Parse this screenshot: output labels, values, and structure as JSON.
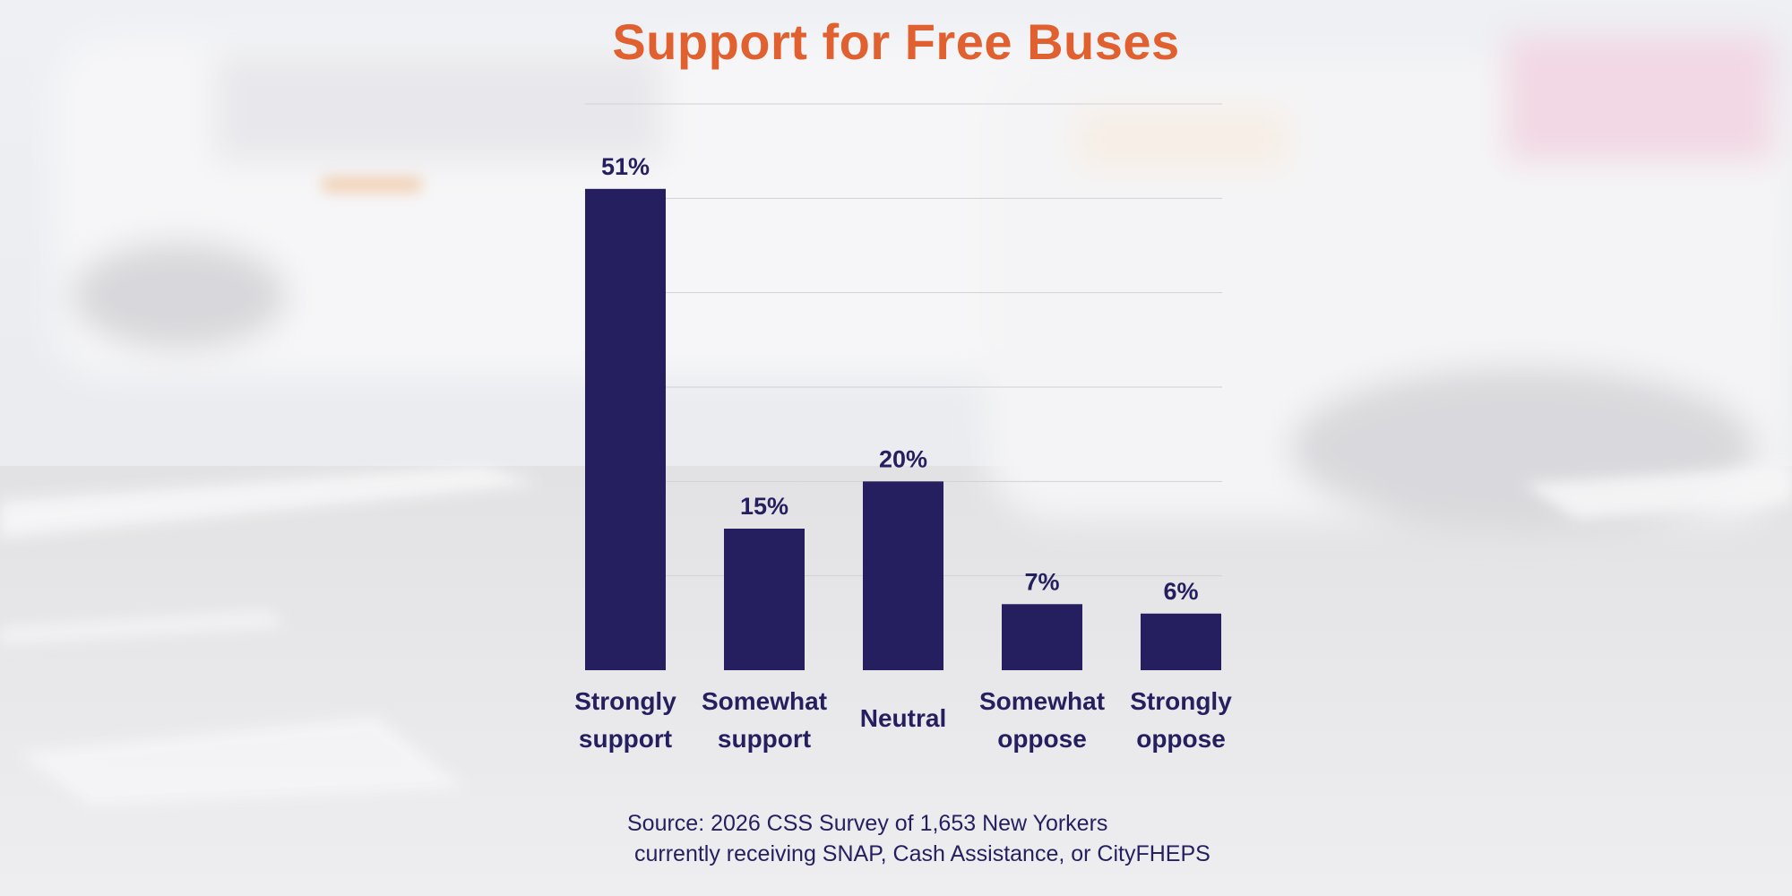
{
  "colors": {
    "title": "#e0602f",
    "bar": "#251f5f",
    "text": "#251f5f",
    "grid": "#d2d2d6"
  },
  "chart_data": {
    "type": "bar",
    "title": "Support for Free Buses",
    "categories": [
      [
        "Strongly",
        "support"
      ],
      [
        "Somewhat",
        "support"
      ],
      [
        "Neutral"
      ],
      [
        "Somewhat",
        "oppose"
      ],
      [
        "Strongly",
        "oppose"
      ]
    ],
    "values": [
      51,
      15,
      20,
      7,
      6
    ],
    "value_labels": [
      "51%",
      "15%",
      "20%",
      "7%",
      "6%"
    ],
    "ylim": [
      0,
      60
    ],
    "grid": true,
    "xlabel": "",
    "ylabel": ""
  },
  "source": {
    "line1": "Source: 2026 CSS Survey of 1,653 New Yorkers",
    "line2": "currently receiving SNAP, Cash Assistance, or CityFHEPS"
  }
}
